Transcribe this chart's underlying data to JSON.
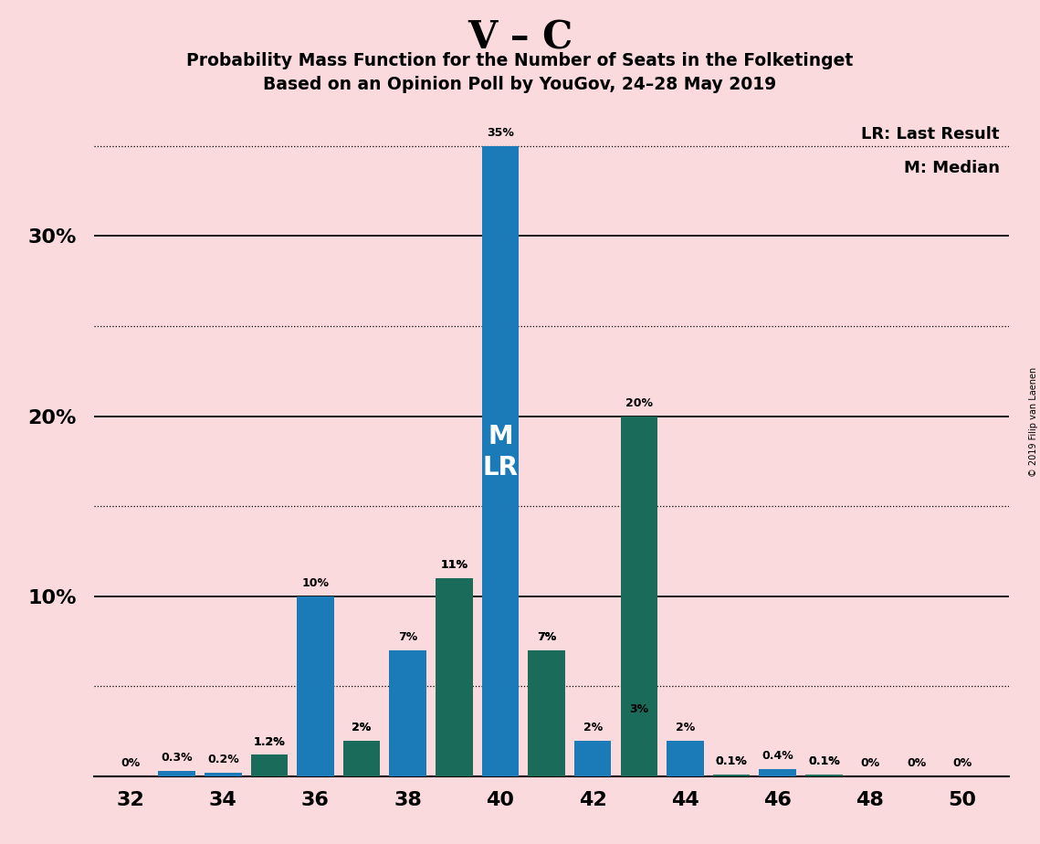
{
  "title_main": "V – C",
  "title_sub1": "Probability Mass Function for the Number of Seats in the Folketinget",
  "title_sub2": "Based on an Opinion Poll by YouGov, 24–28 May 2019",
  "copyright": "© 2019 Filip van Laenen",
  "background_color": "#fadadd",
  "bar_color_v": "#1a7bb8",
  "bar_color_c": "#1a6b5a",
  "v_seats": [
    32,
    33,
    34,
    35,
    36,
    37,
    38,
    39,
    40,
    41,
    42,
    43,
    44,
    45,
    46,
    47,
    48,
    49,
    50
  ],
  "v_values": [
    0.0,
    0.3,
    0.2,
    1.2,
    10.0,
    2.0,
    7.0,
    11.0,
    35.0,
    7.0,
    2.0,
    3.0,
    2.0,
    0.1,
    0.4,
    0.1,
    0.0,
    0.0,
    0.0
  ],
  "c_seats": [
    32,
    33,
    34,
    35,
    36,
    37,
    38,
    39,
    40,
    41,
    42,
    43,
    44,
    45,
    46,
    47,
    48,
    49,
    50
  ],
  "c_values": [
    0.0,
    0.0,
    0.0,
    1.2,
    0.0,
    2.0,
    0.0,
    11.0,
    0.0,
    7.0,
    0.0,
    20.0,
    0.0,
    0.1,
    0.0,
    0.1,
    0.0,
    0.0,
    0.0
  ],
  "ylim": [
    0,
    37
  ],
  "major_yticks": [
    10,
    20,
    30
  ],
  "dotted_yticks": [
    5,
    15,
    25,
    35
  ],
  "median_seat": 40,
  "lr_seat": 40,
  "legend_lr": "LR: Last Result",
  "legend_m": "M: Median",
  "xlabel_ticks": [
    32,
    34,
    36,
    38,
    40,
    42,
    44,
    46,
    48,
    50
  ],
  "bar_width": 0.8
}
